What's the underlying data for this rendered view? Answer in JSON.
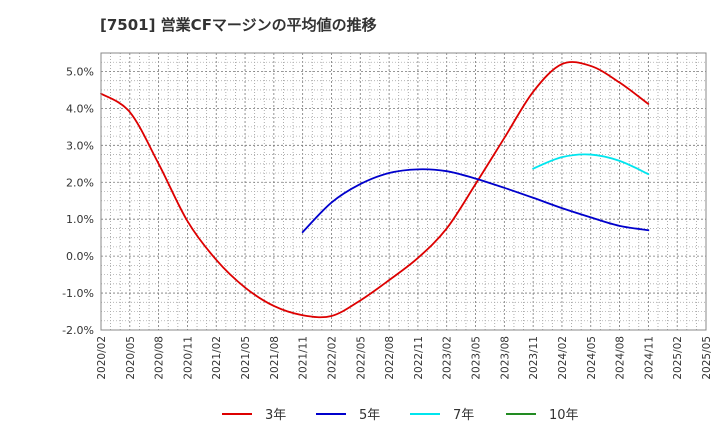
{
  "chart_data": {
    "type": "line",
    "title": "[7501]  営業CFマージンの平均値の推移",
    "xlabel": "",
    "ylabel": "",
    "categories": [
      "2020/02",
      "2020/05",
      "2020/08",
      "2020/11",
      "2021/02",
      "2021/05",
      "2021/08",
      "2021/11",
      "2022/02",
      "2022/05",
      "2022/08",
      "2022/11",
      "2023/02",
      "2023/05",
      "2023/08",
      "2023/11",
      "2024/02",
      "2024/05",
      "2024/08",
      "2024/11",
      "2025/02",
      "2025/05"
    ],
    "ylim": [
      -2.0,
      5.5
    ],
    "yticks": [
      -2.0,
      -1.0,
      0.0,
      1.0,
      2.0,
      3.0,
      4.0,
      5.0
    ],
    "ytick_labels": [
      "-2.0%",
      "-1.0%",
      "0.0%",
      "1.0%",
      "2.0%",
      "3.0%",
      "4.0%",
      "5.0%"
    ],
    "grid": true,
    "legend_position": "bottom",
    "series": [
      {
        "name": "3年",
        "color": "#dd0000",
        "values": [
          4.4,
          3.9,
          2.5,
          0.95,
          -0.1,
          -0.85,
          -1.35,
          -1.6,
          -1.62,
          -1.2,
          -0.65,
          -0.05,
          0.75,
          1.95,
          3.2,
          4.45,
          5.2,
          5.15,
          4.7,
          4.12,
          null,
          null
        ]
      },
      {
        "name": "5年",
        "color": "#0000cc",
        "values": [
          null,
          null,
          null,
          null,
          null,
          null,
          null,
          0.65,
          1.45,
          1.95,
          2.25,
          2.35,
          2.3,
          2.1,
          1.85,
          1.58,
          1.3,
          1.05,
          0.82,
          0.7,
          null,
          null
        ]
      },
      {
        "name": "7年",
        "color": "#00e5ee",
        "values": [
          null,
          null,
          null,
          null,
          null,
          null,
          null,
          null,
          null,
          null,
          null,
          null,
          null,
          null,
          null,
          2.37,
          2.68,
          2.75,
          2.58,
          2.22,
          null,
          null
        ]
      },
      {
        "name": "10年",
        "color": "#228b22",
        "values": [
          null,
          null,
          null,
          null,
          null,
          null,
          null,
          null,
          null,
          null,
          null,
          null,
          null,
          null,
          null,
          null,
          null,
          null,
          null,
          null,
          null,
          null
        ]
      }
    ]
  }
}
